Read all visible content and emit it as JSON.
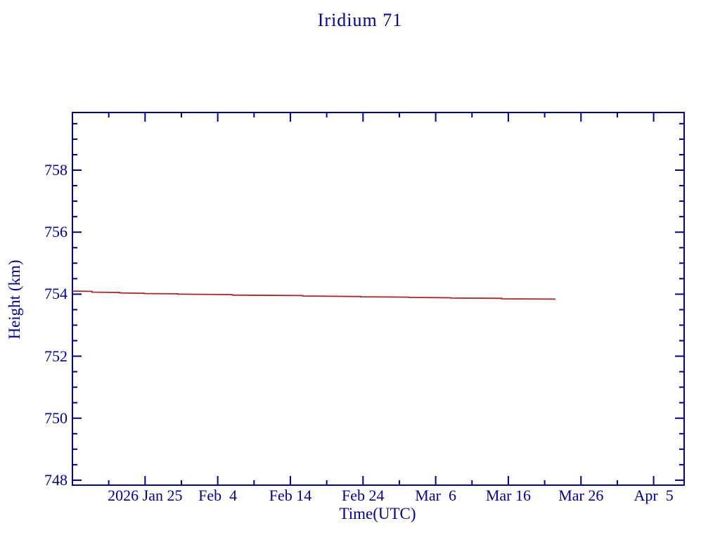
{
  "title": "Iridium 71",
  "colors": {
    "axis": "#000099",
    "text": "#000099",
    "line": "#b22222",
    "background": "#ffffff"
  },
  "chart_data": {
    "type": "line",
    "title": "Iridium 71",
    "xlabel": "Time(UTC)",
    "ylabel": "Height (km)",
    "grid": false,
    "legend": "none",
    "x_axis": {
      "start_date": "2026 Jan 15",
      "unit": "days since axis start",
      "range_days": [
        0,
        84.2
      ],
      "major_ticks": [
        {
          "day": 10,
          "label": "2026 Jan 25"
        },
        {
          "day": 20,
          "label": "Feb  4"
        },
        {
          "day": 30,
          "label": "Feb 14"
        },
        {
          "day": 40,
          "label": "Feb 24"
        },
        {
          "day": 50,
          "label": "Mar  6"
        },
        {
          "day": 60,
          "label": "Mar 16"
        },
        {
          "day": 70,
          "label": "Mar 26"
        },
        {
          "day": 80,
          "label": "Apr  5"
        }
      ],
      "minor_tick_days": [
        5,
        15,
        25,
        35,
        45,
        55,
        65,
        75
      ]
    },
    "y_axis": {
      "range": [
        747.84,
        759.86
      ],
      "major_ticks": [
        748,
        750,
        752,
        754,
        756,
        758
      ],
      "minor_tick_step": 0.5
    },
    "series": [
      {
        "name": "height-km",
        "color": "#b22222",
        "points_day_km": [
          [
            0,
            754.1
          ],
          [
            2.7,
            754.09
          ],
          [
            2.7,
            754.065
          ],
          [
            6.5,
            754.055
          ],
          [
            6.5,
            754.04
          ],
          [
            9.9,
            754.03
          ],
          [
            9.9,
            754.02
          ],
          [
            14.5,
            754.01
          ],
          [
            14.5,
            754.0
          ],
          [
            22.0,
            753.985
          ],
          [
            22.0,
            753.97
          ],
          [
            31.7,
            753.955
          ],
          [
            31.7,
            753.94
          ],
          [
            39.7,
            753.925
          ],
          [
            39.7,
            753.915
          ],
          [
            46.3,
            753.905
          ],
          [
            46.3,
            753.895
          ],
          [
            52.1,
            753.885
          ],
          [
            52.1,
            753.875
          ],
          [
            59.1,
            753.865
          ],
          [
            59.1,
            753.85
          ],
          [
            66.5,
            753.84
          ]
        ]
      }
    ]
  }
}
